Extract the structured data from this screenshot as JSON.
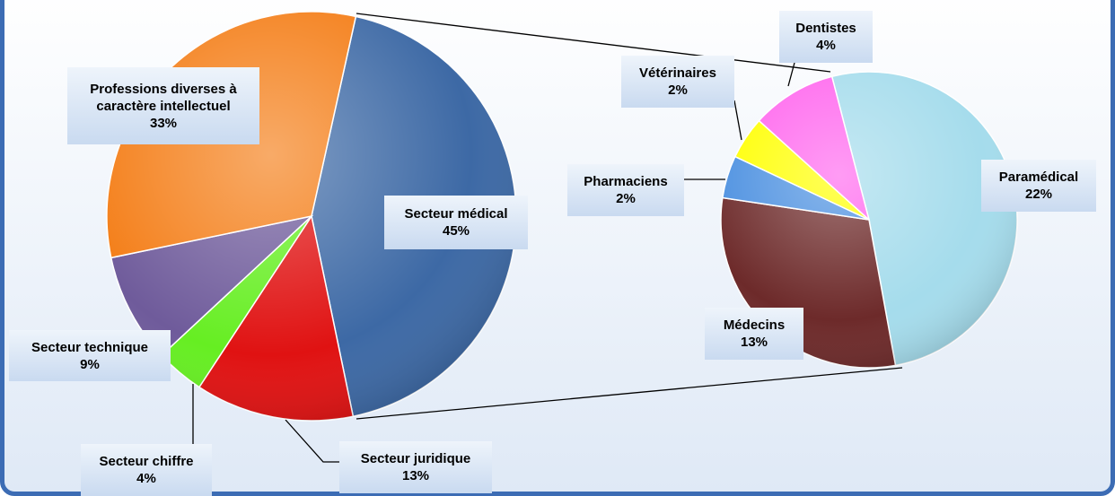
{
  "chart_data": [
    {
      "type": "pie",
      "categories": [
        "Secteur médical",
        "Secteur juridique",
        "Secteur chiffre",
        "Secteur technique",
        "Professions diverses à caractère intellectuel"
      ],
      "values": [
        45,
        13,
        4,
        9,
        33
      ],
      "value_labels": [
        "45%",
        "13%",
        "4%",
        "9%",
        "33%"
      ],
      "colors": [
        "#3d69a5",
        "#e01212",
        "#66ee22",
        "#6f5b9b",
        "#f47d16"
      ]
    },
    {
      "type": "pie",
      "categories": [
        "Paramédical",
        "Médecins",
        "Pharmaciens",
        "Vétérinaires",
        "Dentistes"
      ],
      "values": [
        22,
        13,
        2,
        2,
        4
      ],
      "value_labels": [
        "22%",
        "13%",
        "2%",
        "2%",
        "4%"
      ],
      "colors": [
        "#a5dcec",
        "#6d2a2a",
        "#4a8fe0",
        "#ffff00",
        "#ff66ee"
      ]
    }
  ]
}
